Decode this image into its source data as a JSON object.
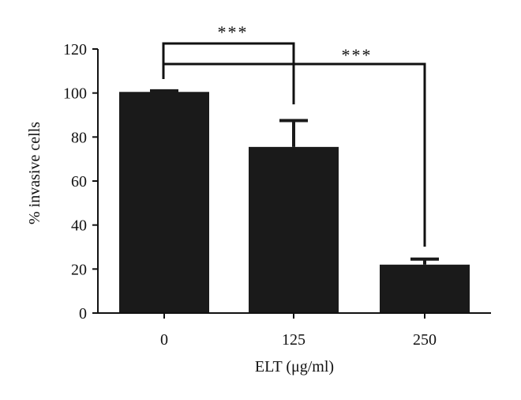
{
  "chart_data": {
    "type": "bar",
    "categories": [
      "0",
      "125",
      "250"
    ],
    "values": [
      100.5,
      75.5,
      22
    ],
    "error_upper": [
      101,
      87.5,
      24.5
    ],
    "xlabel": "ELT (μg/ml)",
    "ylabel": "% invasive cells",
    "ylim": [
      0,
      120
    ],
    "yticks": [
      "0",
      "20",
      "40",
      "60",
      "80",
      "100",
      "120"
    ],
    "bar_color": "#1a1a1a",
    "grid": false,
    "significance": [
      {
        "from": "0",
        "to": "125",
        "label": "***"
      },
      {
        "from": "0",
        "to": "250",
        "label": "***"
      }
    ]
  }
}
